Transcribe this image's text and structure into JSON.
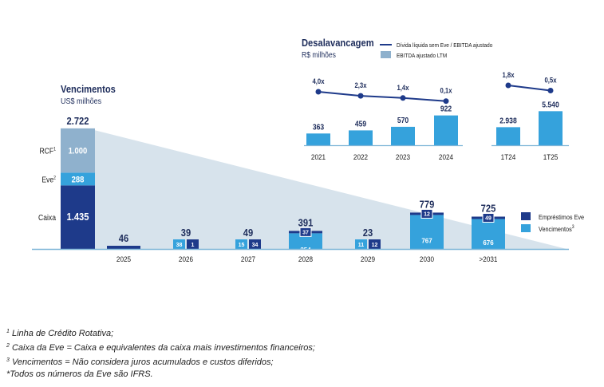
{
  "colors": {
    "dark_navy": "#1e3a8a",
    "navy_text": "#1f2e5c",
    "light_blue": "#35a2dc",
    "steel_blue": "#8fb1cd",
    "triangle": "#d7e3ec",
    "axis": "#7fb6d8",
    "text": "#1a1a1a"
  },
  "chart_data": [
    {
      "id": "vencimentos",
      "type": "bar",
      "title": "Vencimentos",
      "subtitle": "US$ milhões",
      "liquidity_bar": {
        "total": "2.722",
        "segments": [
          {
            "label": "Caixa",
            "sup": "",
            "value": 1435,
            "display": "1.435"
          },
          {
            "label": "Eve",
            "sup": "2",
            "value": 288,
            "display": "288"
          },
          {
            "label": "RCF",
            "sup": "1",
            "value": 1000,
            "display": "1.000"
          }
        ]
      },
      "categories": [
        "2025",
        "2026",
        "2027",
        "2028",
        "2029",
        "2030",
        ">2031"
      ],
      "totals": [
        "46",
        "39",
        "49",
        "391",
        "23",
        "779",
        "725"
      ],
      "series": [
        {
          "name": "Empréstimos Eve",
          "values": [
            46,
            1,
            34,
            37,
            12,
            12,
            49
          ]
        },
        {
          "name": "Vencimentos",
          "sup": "3",
          "values": [
            0,
            38,
            15,
            354,
            11,
            767,
            676
          ]
        }
      ],
      "legend": [
        "Empréstimos Eve",
        "Vencimentos"
      ],
      "legend_position": "right"
    },
    {
      "id": "desalavancagem",
      "type": "bar+line",
      "title": "Desalavancagem",
      "subtitle": "R$ milhões",
      "legend": {
        "line": "Dívida líquida sem Eve / EBITDA ajustado",
        "bar": "EBITDA ajustado LTM"
      },
      "annual": {
        "categories": [
          "2021",
          "2022",
          "2023",
          "2024"
        ],
        "bars": [
          363,
          459,
          570,
          922
        ],
        "bar_labels": [
          "363",
          "459",
          "570",
          "922"
        ],
        "ratios": [
          4.0,
          2.3,
          1.4,
          0.1
        ],
        "ratio_labels": [
          "4,0x",
          "2,3x",
          "1,4x",
          "0,1x"
        ]
      },
      "quarterly": {
        "categories": [
          "1T24",
          "1T25"
        ],
        "bars": [
          2938,
          5540
        ],
        "bar_labels": [
          "2.938",
          "5.540"
        ],
        "ratios": [
          1.8,
          0.5
        ],
        "ratio_labels": [
          "1,8x",
          "0,5x"
        ]
      }
    }
  ],
  "footnotes": [
    {
      "sup": "1",
      "text": "Linha de Crédito Rotativa;"
    },
    {
      "sup": "2",
      "text": "Caixa da Eve = Caixa e equivalentes da caixa mais investimentos financeiros;"
    },
    {
      "sup": "3",
      "text": "Vencimentos = Não considera juros acumulados e custos diferidos;"
    },
    {
      "sup": "",
      "text": "*Todos os números da Eve são IFRS."
    }
  ]
}
